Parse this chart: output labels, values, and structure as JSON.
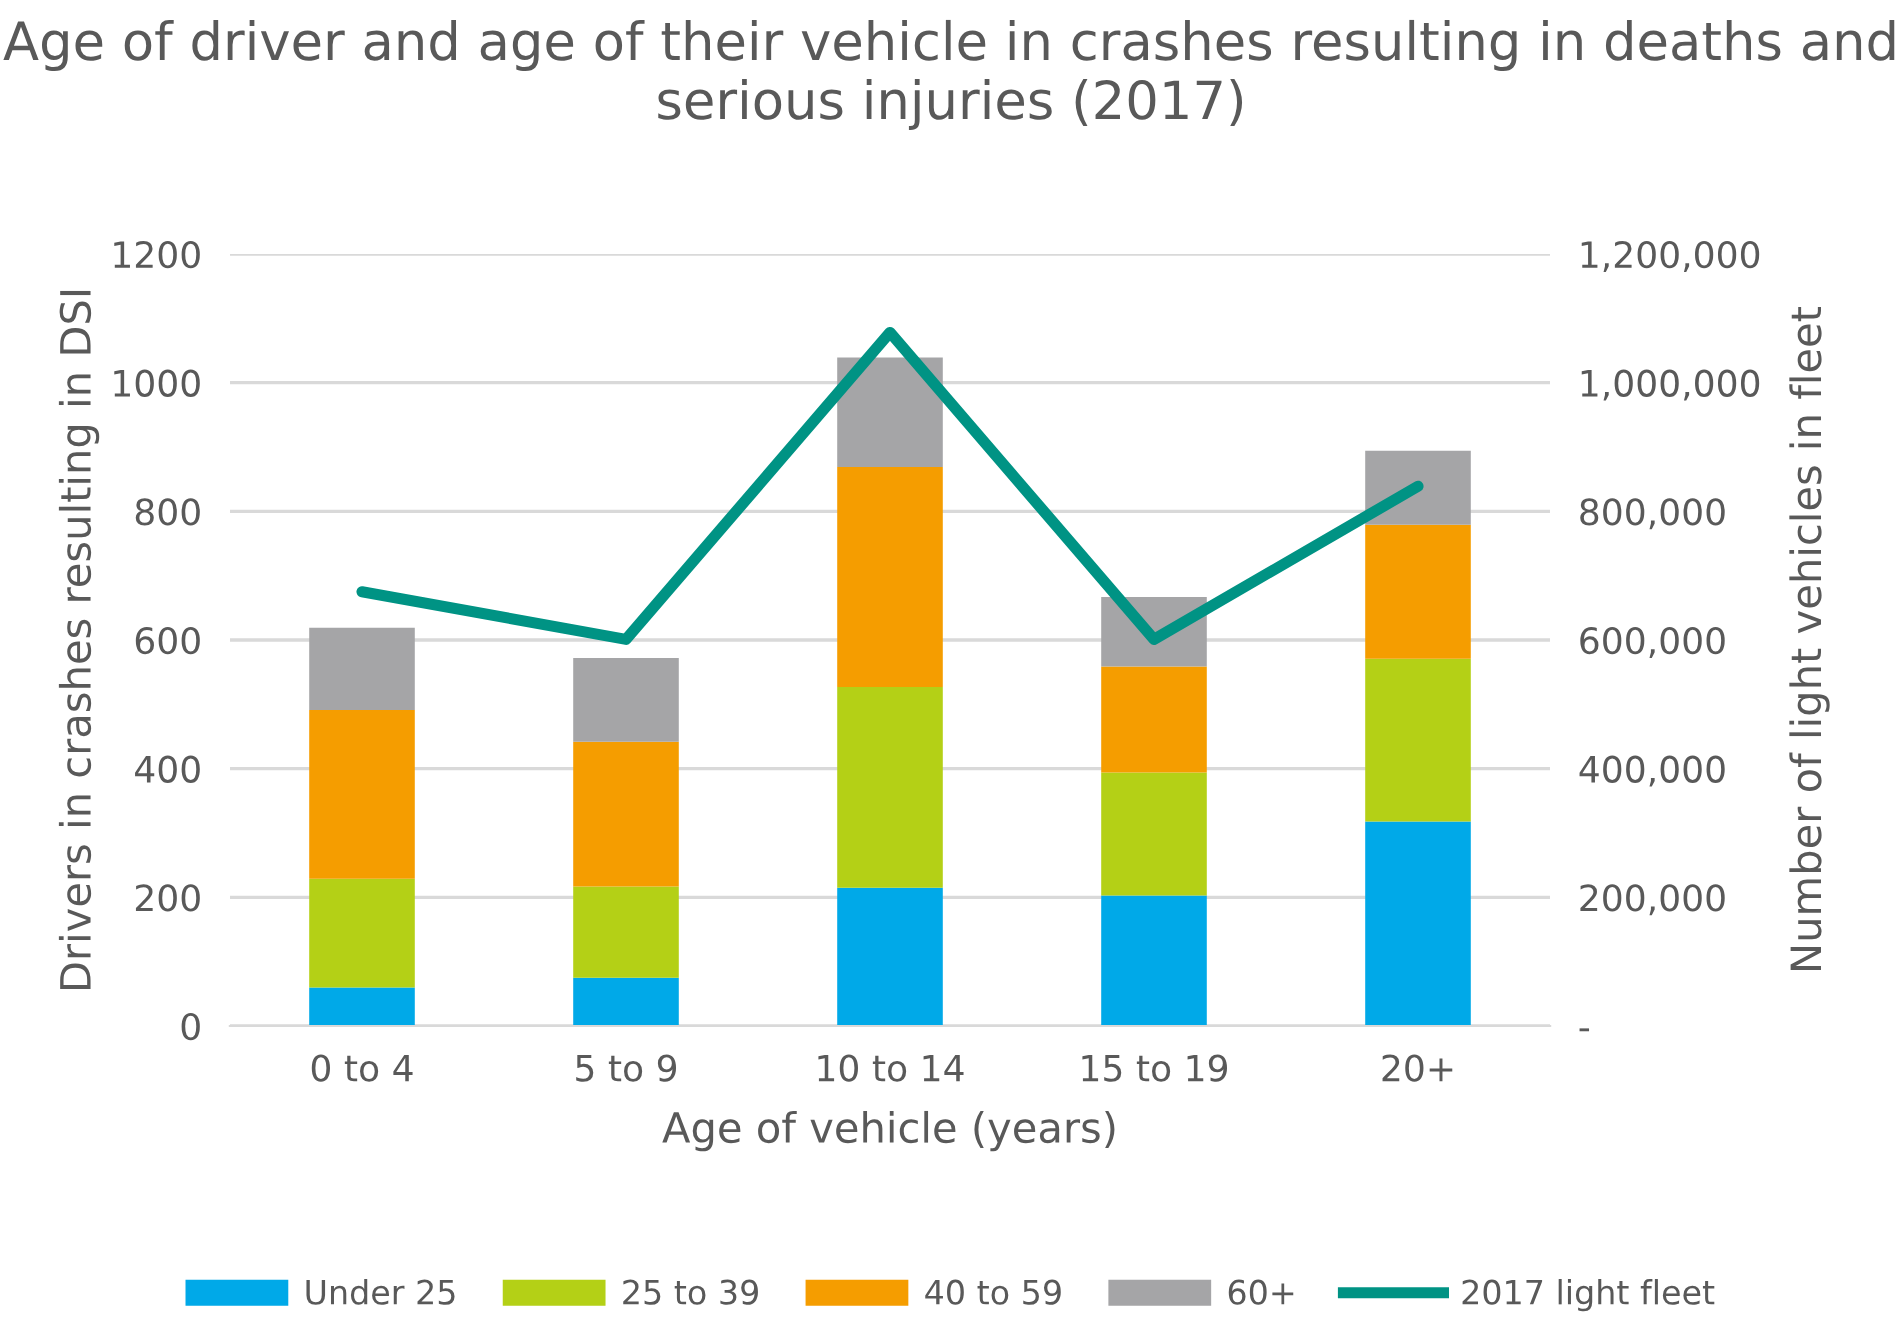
{
  "chart_data": {
    "type": "bar",
    "stacked": true,
    "title": "Age of driver and age of their vehicle in crashes resulting in deaths and serious injuries (2017)",
    "xlabel": "Age of vehicle (years)",
    "ylabel": "Drivers in crashes resulting in DSI",
    "y2label": "Number of light vehicles in fleet",
    "categories": [
      "0 to 4",
      "5 to 9",
      "10 to 14",
      "15 to 19",
      "20+"
    ],
    "series": [
      {
        "name": "Under 25",
        "color": "#00a9e8",
        "values": [
          60,
          75,
          215,
          203,
          318
        ]
      },
      {
        "name": "25 to 39",
        "color": "#b4d016",
        "values": [
          169,
          142,
          312,
          191,
          253
        ]
      },
      {
        "name": "40 to 59",
        "color": "#f59d00",
        "values": [
          262,
          225,
          342,
          165,
          208
        ]
      },
      {
        "name": "60+",
        "color": "#a5a5a7",
        "values": [
          128,
          130,
          170,
          108,
          115
        ]
      },
      {
        "name": "2017 light fleet",
        "color": "#009384",
        "type": "line",
        "axis": "y2",
        "values": [
          675000,
          601000,
          1078000,
          601000,
          839000
        ]
      }
    ],
    "ylim": [
      0,
      1200
    ],
    "yticks": [
      0,
      200,
      400,
      600,
      800,
      1000,
      1200
    ],
    "y2lim": [
      0,
      1200000
    ],
    "y2ticks": [
      {
        "value": 0,
        "label": "-"
      },
      {
        "value": 200000,
        "label": "200,000"
      },
      {
        "value": 400000,
        "label": "400,000"
      },
      {
        "value": 600000,
        "label": "600,000"
      },
      {
        "value": 800000,
        "label": "800,000"
      },
      {
        "value": 1000000,
        "label": "1,000,000"
      },
      {
        "value": 1200000,
        "label": "1,200,000"
      }
    ],
    "grid": "y",
    "legend": "bottom",
    "marker": "none",
    "line_style": "solid"
  }
}
